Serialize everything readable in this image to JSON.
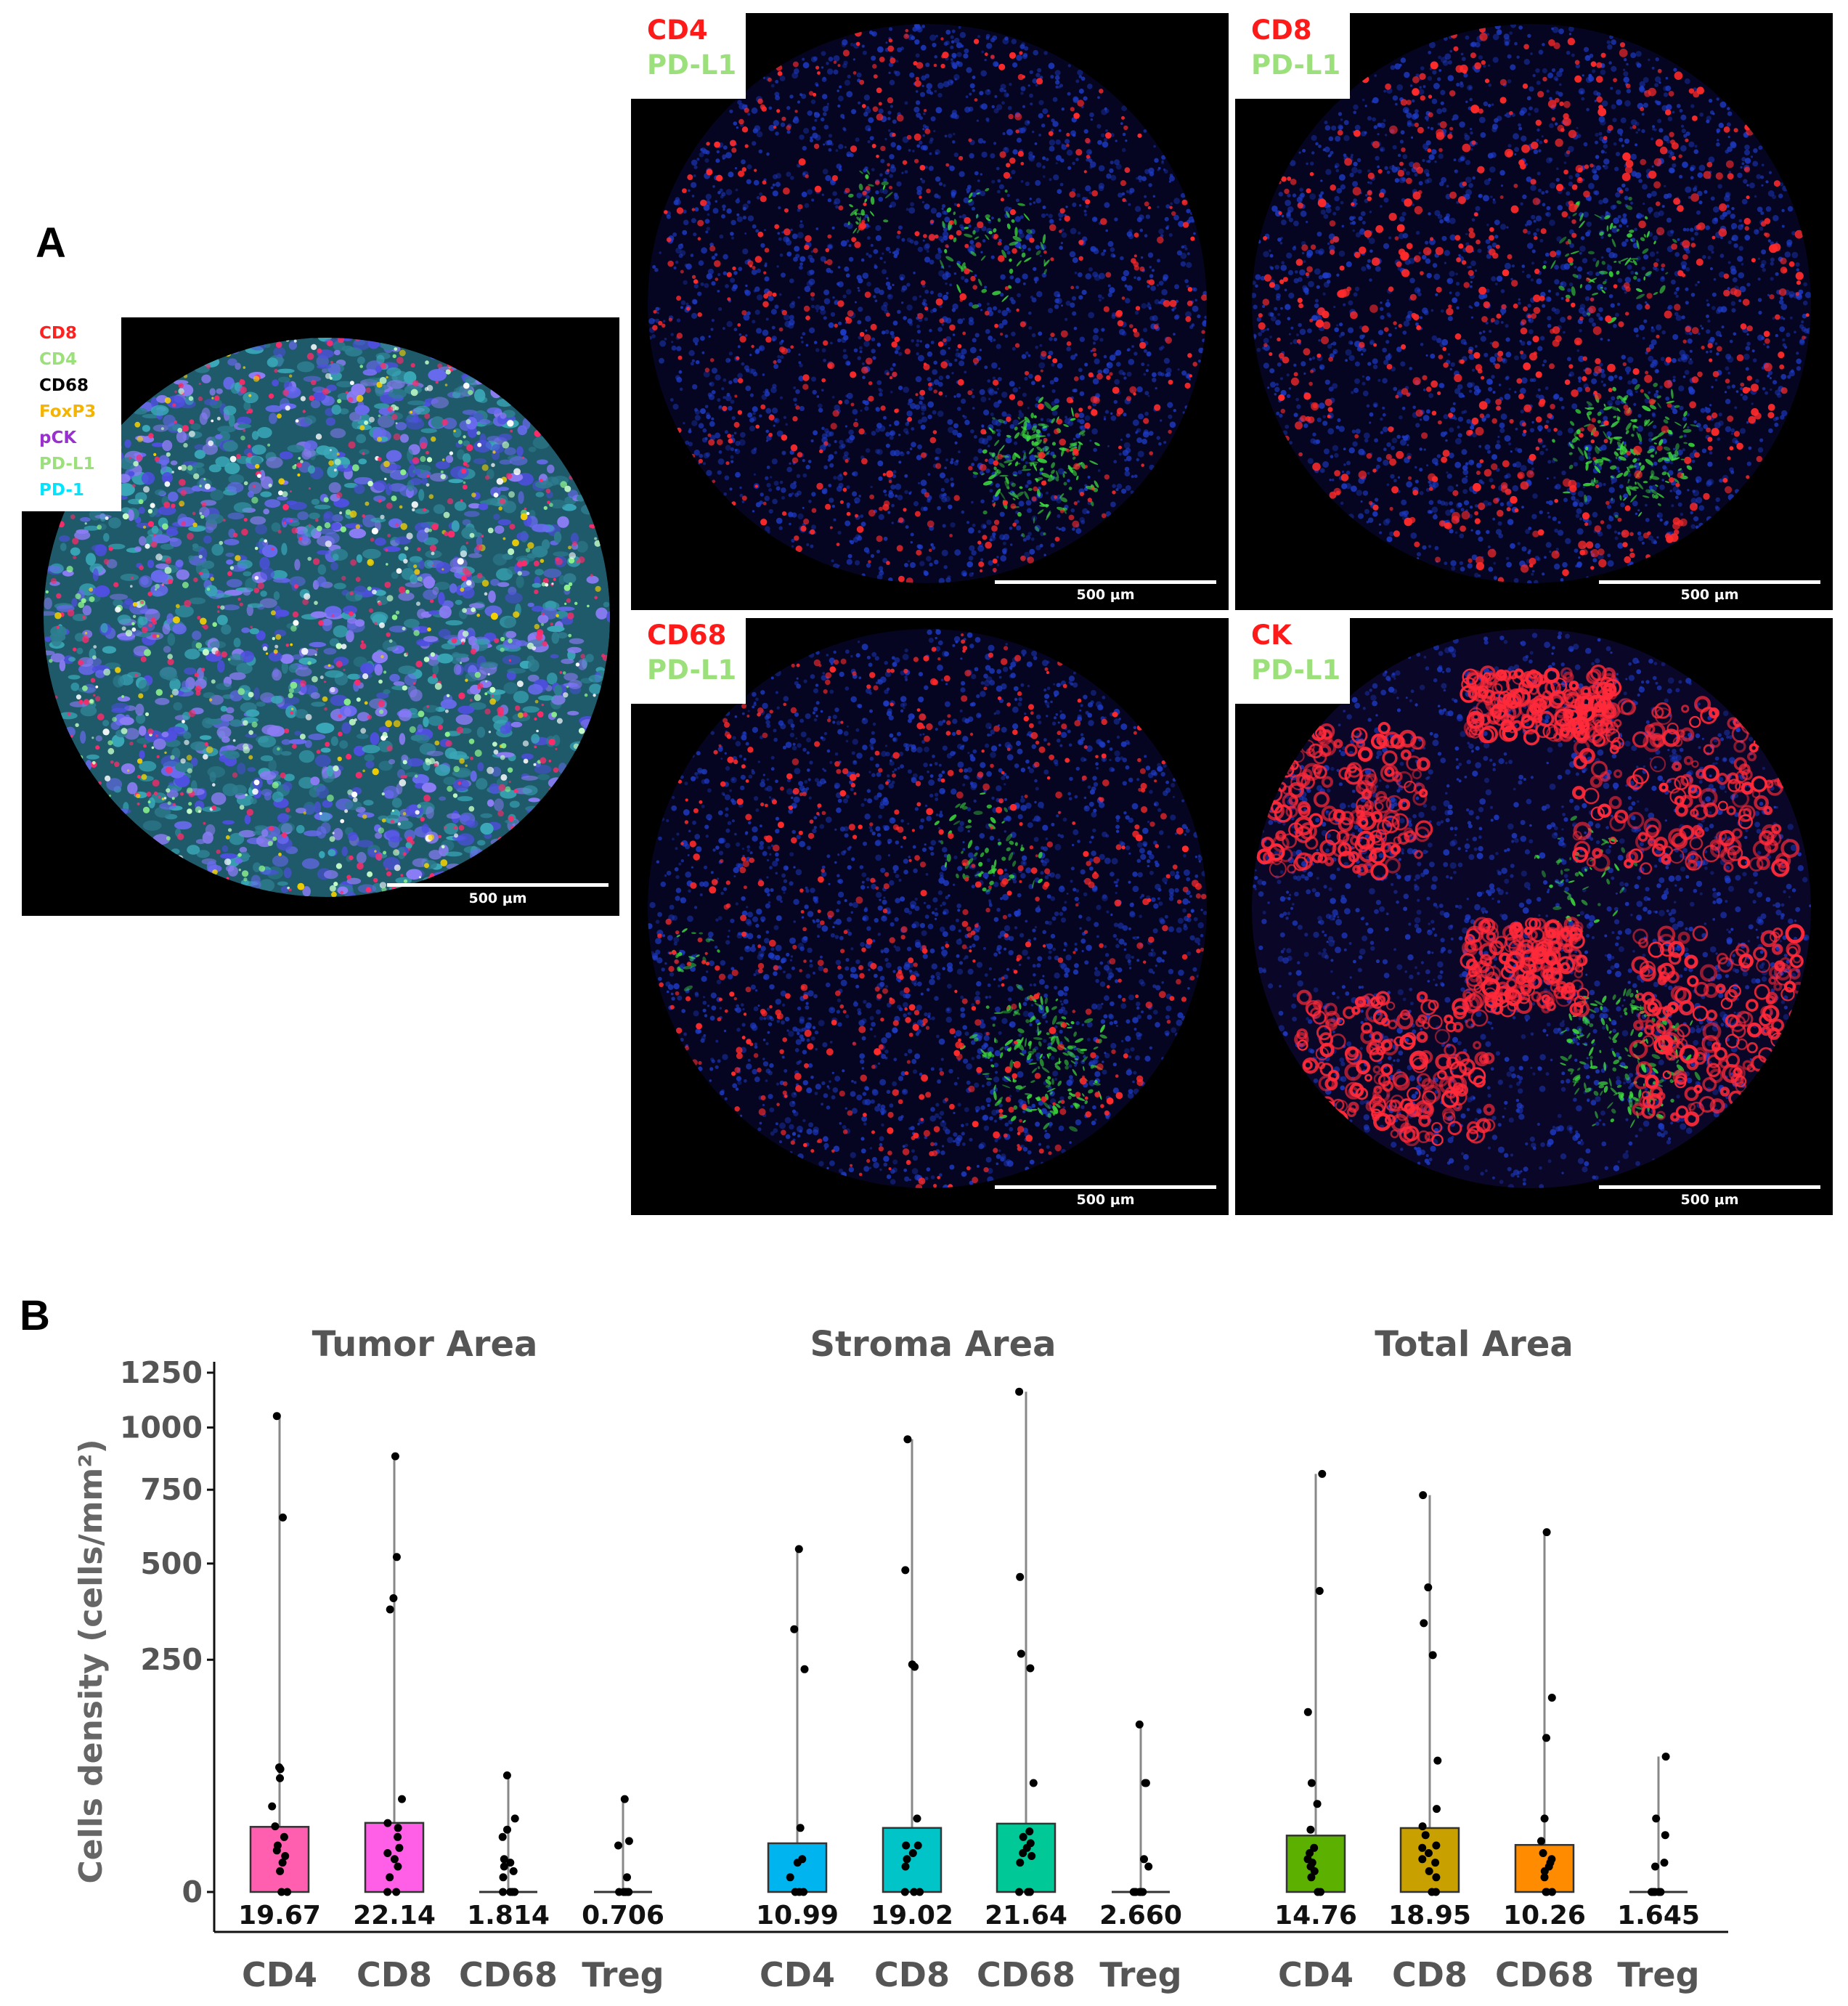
{
  "panel_a": {
    "label": "A",
    "overview": {
      "legend": [
        {
          "text": "CD8",
          "color": "#ff2020"
        },
        {
          "text": "CD4",
          "color": "#9be07a"
        },
        {
          "text": "CD68",
          "color": "#000000"
        },
        {
          "text": "FoxP3",
          "color": "#f5b400"
        },
        {
          "text": "pCK",
          "color": "#9b30d0"
        },
        {
          "text": "PD-L1",
          "color": "#9be07a"
        },
        {
          "text": "PD-1",
          "color": "#00e5ff"
        }
      ],
      "scale_bar": "500 μm"
    },
    "tiles": [
      {
        "marker": "CD4",
        "co_marker": "PD-L1",
        "scale_bar": "500 μm"
      },
      {
        "marker": "CD8",
        "co_marker": "PD-L1",
        "scale_bar": "500 μm"
      },
      {
        "marker": "CD68",
        "co_marker": "PD-L1",
        "scale_bar": "500 μm"
      },
      {
        "marker": "CK",
        "co_marker": "PD-L1",
        "scale_bar": "500 μm"
      }
    ],
    "colors": {
      "marker": "#ff1a1a",
      "co_marker": "#9be07a",
      "nuclei": "#1e3cc8"
    }
  },
  "panel_b": {
    "label": "B"
  },
  "chart_data": {
    "type": "bar",
    "ylabel": "Cells density (cells/mm²)",
    "yticks": [
      0,
      250,
      500,
      750,
      1000,
      1250
    ],
    "ylim": [
      0,
      1250
    ],
    "y_scale": "square-root",
    "groups": [
      {
        "title": "Tumor Area",
        "categories": [
          "CD4",
          "CD8",
          "CD68",
          "Treg"
        ],
        "values": [
          19.67,
          22.14,
          1.814,
          0.706
        ],
        "labels": [
          "19.67",
          "22.14",
          "1.814",
          "0.706"
        ],
        "colors": [
          "#ff5fae",
          "#ff5fe6",
          "#dd80ff",
          "#999999"
        ],
        "points": [
          [
            0,
            0,
            2,
            4,
            6,
            8,
            10,
            14,
            20,
            34,
            60,
            70,
            72,
            650,
            1050
          ],
          [
            0,
            0,
            1,
            3,
            5,
            7,
            9,
            14,
            19,
            22,
            40,
            370,
            400,
            520,
            880
          ],
          [
            0,
            0,
            0,
            0,
            1,
            2,
            3,
            4,
            5,
            14,
            18,
            25,
            63
          ],
          [
            0,
            0,
            0,
            0,
            0,
            0,
            0,
            0,
            1,
            10,
            12,
            40
          ]
        ],
        "whisker_max": [
          1050,
          880,
          63,
          40
        ]
      },
      {
        "title": "Stroma Area",
        "categories": [
          "CD4",
          "CD8",
          "CD68",
          "Treg"
        ],
        "values": [
          10.99,
          19.02,
          21.64,
          2.66
        ],
        "labels": [
          "10.99",
          "19.02",
          "21.64",
          "2.660"
        ],
        "colors": [
          "#00b4f0",
          "#00c4c8",
          "#00c896",
          "#999999"
        ],
        "points": [
          [
            0,
            0,
            0,
            1,
            4,
            5,
            19,
            230,
            320,
            545
          ],
          [
            0,
            0,
            0,
            3,
            5,
            7,
            10,
            10,
            25,
            235,
            240,
            480,
            950
          ],
          [
            0,
            0,
            0,
            4,
            6,
            7,
            9,
            11,
            14,
            17,
            55,
            232,
            263,
            460,
            1160
          ],
          [
            0,
            0,
            0,
            0,
            0,
            0,
            3,
            5,
            55,
            55,
            130
          ]
        ],
        "whisker_max": [
          545,
          950,
          1160,
          130
        ]
      },
      {
        "title": "Total Area",
        "categories": [
          "CD4",
          "CD8",
          "CD68",
          "Treg"
        ],
        "values": [
          14.76,
          18.95,
          10.26,
          1.645
        ],
        "labels": [
          "14.76",
          "18.95",
          "10.26",
          "1.645"
        ],
        "colors": [
          "#5cb000",
          "#c8a000",
          "#ff8c00",
          "#999999"
        ],
        "points": [
          [
            0,
            0,
            1,
            2,
            3,
            4,
            5,
            7,
            9,
            18,
            36,
            55,
            150,
            420,
            810
          ],
          [
            0,
            0,
            1,
            2,
            4,
            5,
            7,
            9,
            10,
            15,
            20,
            32,
            80,
            260,
            335,
            430,
            730
          ],
          [
            0,
            0,
            0,
            1,
            2,
            3,
            4,
            5,
            7,
            12,
            25,
            110,
            175,
            600
          ],
          [
            0,
            0,
            0,
            0,
            0,
            0,
            3,
            4,
            15,
            25,
            85
          ]
        ],
        "whisker_max": [
          810,
          730,
          600,
          85
        ]
      }
    ]
  }
}
